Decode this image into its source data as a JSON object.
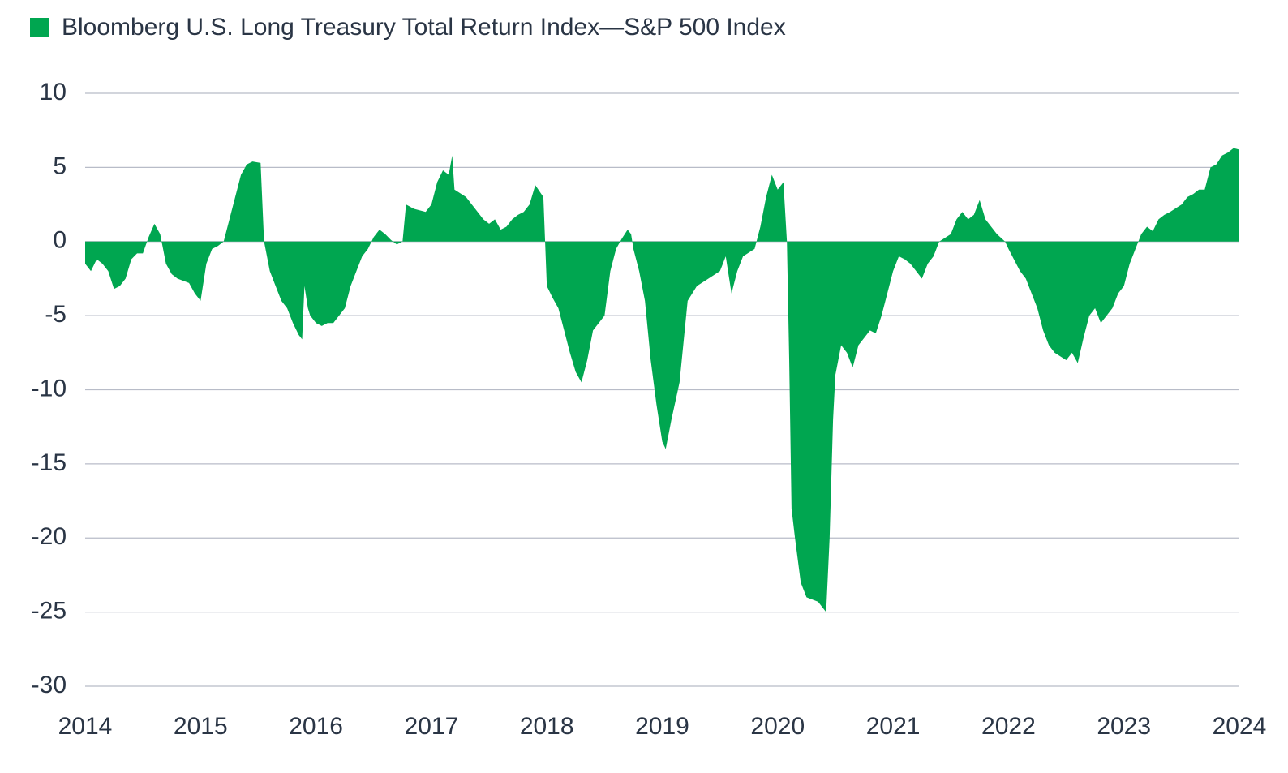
{
  "chart_data": {
    "type": "area",
    "x": [
      2014.0,
      2014.05,
      2014.1,
      2014.15,
      2014.2,
      2014.25,
      2014.3,
      2014.35,
      2014.4,
      2014.45,
      2014.5,
      2014.55,
      2014.6,
      2014.65,
      2014.7,
      2014.75,
      2014.8,
      2014.9,
      2014.95,
      2015.0,
      2015.05,
      2015.1,
      2015.15,
      2015.2,
      2015.25,
      2015.3,
      2015.35,
      2015.4,
      2015.45,
      2015.52,
      2015.55,
      2015.6,
      2015.65,
      2015.7,
      2015.75,
      2015.8,
      2015.85,
      2015.88,
      2015.9,
      2015.93,
      2015.95,
      2016.0,
      2016.05,
      2016.1,
      2016.15,
      2016.25,
      2016.3,
      2016.35,
      2016.4,
      2016.45,
      2016.5,
      2016.55,
      2016.6,
      2016.65,
      2016.7,
      2016.75,
      2016.78,
      2016.85,
      2016.95,
      2017.0,
      2017.05,
      2017.1,
      2017.15,
      2017.18,
      2017.2,
      2017.3,
      2017.35,
      2017.45,
      2017.5,
      2017.55,
      2017.6,
      2017.65,
      2017.7,
      2017.75,
      2017.8,
      2017.85,
      2017.9,
      2017.97,
      2018.0,
      2018.05,
      2018.1,
      2018.15,
      2018.2,
      2018.25,
      2018.3,
      2018.35,
      2018.4,
      2018.45,
      2018.5,
      2018.55,
      2018.6,
      2018.65,
      2018.7,
      2018.73,
      2018.75,
      2018.8,
      2018.85,
      2018.9,
      2018.95,
      2019.0,
      2019.03,
      2019.08,
      2019.15,
      2019.22,
      2019.3,
      2019.4,
      2019.5,
      2019.55,
      2019.6,
      2019.65,
      2019.7,
      2019.8,
      2019.85,
      2019.9,
      2019.95,
      2020.0,
      2020.05,
      2020.08,
      2020.1,
      2020.12,
      2020.15,
      2020.2,
      2020.25,
      2020.35,
      2020.42,
      2020.45,
      2020.48,
      2020.5,
      2020.55,
      2020.6,
      2020.65,
      2020.7,
      2020.75,
      2020.8,
      2020.85,
      2020.9,
      2020.95,
      2021.0,
      2021.05,
      2021.1,
      2021.15,
      2021.2,
      2021.25,
      2021.3,
      2021.35,
      2021.4,
      2021.5,
      2021.55,
      2021.6,
      2021.65,
      2021.7,
      2021.75,
      2021.8,
      2021.85,
      2021.9,
      2021.97,
      2022.0,
      2022.1,
      2022.15,
      2022.2,
      2022.25,
      2022.3,
      2022.35,
      2022.4,
      2022.5,
      2022.55,
      2022.6,
      2022.65,
      2022.7,
      2022.75,
      2022.8,
      2022.85,
      2022.9,
      2022.95,
      2023.0,
      2023.05,
      2023.1,
      2023.15,
      2023.2,
      2023.25,
      2023.3,
      2023.35,
      2023.4,
      2023.5,
      2023.55,
      2023.6,
      2023.65,
      2023.7,
      2023.75,
      2023.8,
      2023.85,
      2023.9,
      2023.95,
      2024.0
    ],
    "series": [
      {
        "name": "Bloomberg U.S. Long Treasury Total Return Index—S&P 500 Index",
        "color": "#00a650",
        "values": [
          -1.5,
          -2,
          -1.2,
          -1.5,
          -2,
          -3.2,
          -3,
          -2.5,
          -1.2,
          -0.8,
          -0.8,
          0.3,
          1.2,
          0.5,
          -1.5,
          -2.2,
          -2.5,
          -2.8,
          -3.5,
          -4,
          -1.5,
          -0.5,
          -0.3,
          0,
          1.5,
          3,
          4.5,
          5.2,
          5.4,
          5.3,
          0,
          -2,
          -3,
          -4,
          -4.5,
          -5.5,
          -6.3,
          -6.6,
          -3,
          -4.5,
          -5,
          -5.5,
          -5.7,
          -5.5,
          -5.5,
          -4.5,
          -3,
          -2,
          -1,
          -0.5,
          0.3,
          0.8,
          0.5,
          0.1,
          -0.2,
          0,
          2.5,
          2.2,
          2,
          2.5,
          4,
          4.8,
          4.5,
          5.8,
          3.5,
          3,
          2.5,
          1.5,
          1.2,
          1.5,
          0.8,
          1,
          1.5,
          1.8,
          2,
          2.5,
          3.8,
          3,
          -3,
          -3.8,
          -4.5,
          -6,
          -7.5,
          -8.8,
          -9.5,
          -8,
          -6,
          -5.5,
          -5,
          -2,
          -0.5,
          0.2,
          0.8,
          0.5,
          -0.5,
          -2,
          -4,
          -8,
          -11,
          -13.5,
          -14,
          -12,
          -9.5,
          -4,
          -3,
          -2.5,
          -2,
          -1,
          -3.5,
          -2,
          -1,
          -0.5,
          1,
          3,
          4.5,
          3.5,
          4,
          0,
          -8,
          -18,
          -20,
          -23,
          -24,
          -24.3,
          -25,
          -20,
          -12,
          -9,
          -7,
          -7.5,
          -8.5,
          -7,
          -6.5,
          -6,
          -6.2,
          -5,
          -3.5,
          -2,
          -1,
          -1.2,
          -1.5,
          -2,
          -2.5,
          -1.5,
          -1,
          0,
          0.5,
          1.5,
          2,
          1.5,
          1.8,
          2.8,
          1.5,
          1,
          0.5,
          0,
          -0.5,
          -2,
          -2.5,
          -3.5,
          -4.5,
          -6,
          -7,
          -7.5,
          -8,
          -7.5,
          -8.2,
          -6.5,
          -5,
          -4.5,
          -5.5,
          -5,
          -4.5,
          -3.5,
          -3,
          -1.5,
          -0.5,
          0.5,
          1,
          0.7,
          1.5,
          1.8,
          2,
          2.5,
          3,
          3.2,
          3.5,
          3.5,
          5,
          5.2,
          5.8,
          6,
          6.3,
          6.2
        ]
      }
    ],
    "xlim": [
      2014,
      2024
    ],
    "xticks": [
      2014,
      2015,
      2016,
      2017,
      2018,
      2019,
      2020,
      2021,
      2022,
      2023,
      2024
    ],
    "ylim": [
      -30,
      10
    ],
    "yticks": [
      10,
      5,
      0,
      -5,
      -10,
      -15,
      -20,
      -25,
      -30
    ],
    "grid": true
  }
}
